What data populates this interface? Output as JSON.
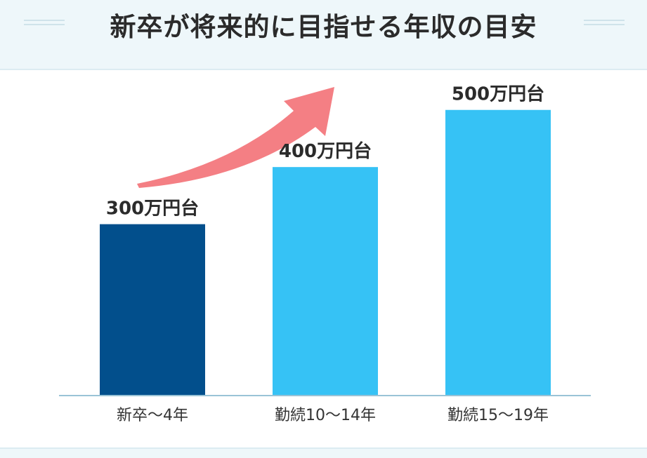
{
  "colors": {
    "header_bg": "#eef7fa",
    "bar_first": "#024f8c",
    "bar_other": "#36c2f5",
    "axis": "#9ac3d6",
    "arrow": "#f47f84"
  },
  "chart_data": {
    "type": "bar",
    "title": "新卒が将来的に目指せる年収の目安",
    "xlabel": "",
    "ylabel": "",
    "categories": [
      "新卒〜4年",
      "勤続10〜14年",
      "勤続15〜19年"
    ],
    "values": [
      300,
      400,
      500
    ],
    "data_labels": [
      "300万円台",
      "400万円台",
      "500万円台"
    ],
    "unit": "万円",
    "ylim": [
      0,
      550
    ],
    "grid": false,
    "legend": "none",
    "annotation": "arrow-up-right"
  }
}
